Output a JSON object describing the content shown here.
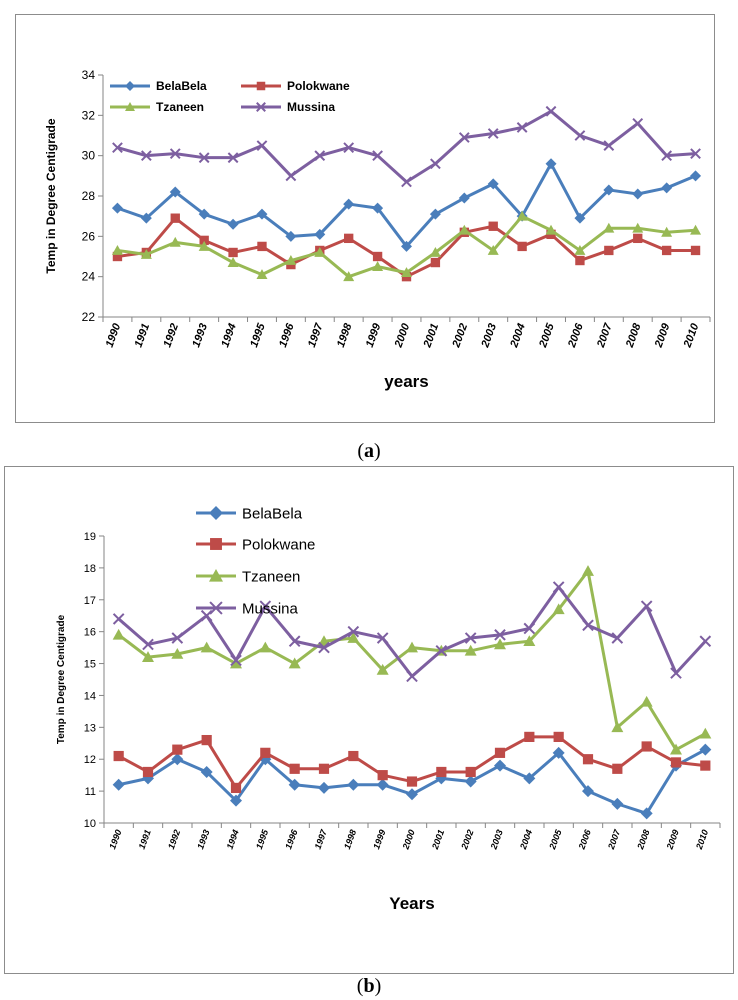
{
  "chart_data": [
    {
      "type": "line",
      "caption_letter": "a",
      "ylabel": "Temp in Degree Centigrade",
      "xlabel": "years",
      "ylim": [
        22,
        34
      ],
      "yticks": [
        22,
        24,
        26,
        28,
        30,
        32,
        34
      ],
      "legend_position": "top",
      "grid": false,
      "x": [
        "1990",
        "1991",
        "1992",
        "1993",
        "1994",
        "1995",
        "1996",
        "1997",
        "1998",
        "1999",
        "2000",
        "2001",
        "2002",
        "2003",
        "2004",
        "2005",
        "2006",
        "2007",
        "2008",
        "2009",
        "2010"
      ],
      "series": [
        {
          "name": "BelaBela",
          "color": "#4a7ebb",
          "marker": "diamond",
          "values": [
            27.4,
            26.9,
            28.2,
            27.1,
            26.6,
            27.1,
            26.0,
            26.1,
            27.6,
            27.4,
            25.5,
            27.1,
            27.9,
            28.6,
            27.0,
            29.6,
            26.9,
            28.3,
            28.1,
            28.4,
            29.0
          ]
        },
        {
          "name": "Polokwane",
          "color": "#be4b48",
          "marker": "square",
          "values": [
            25.0,
            25.2,
            26.9,
            25.8,
            25.2,
            25.5,
            24.6,
            25.3,
            25.9,
            25.0,
            24.0,
            24.7,
            26.2,
            26.5,
            25.5,
            26.1,
            24.8,
            25.3,
            25.9,
            25.3,
            25.3
          ]
        },
        {
          "name": "Tzaneen",
          "color": "#98b954",
          "marker": "triangle",
          "values": [
            25.3,
            25.1,
            25.7,
            25.5,
            24.7,
            24.1,
            24.8,
            25.2,
            24.0,
            24.5,
            24.2,
            25.2,
            26.3,
            25.3,
            27.0,
            26.3,
            25.3,
            26.4,
            26.4,
            26.2,
            26.3
          ]
        },
        {
          "name": "Mussina",
          "color": "#7d5fa0",
          "marker": "x",
          "values": [
            30.4,
            30.0,
            30.1,
            29.9,
            29.9,
            30.5,
            29.0,
            30.0,
            30.4,
            30.0,
            28.7,
            29.6,
            30.9,
            31.1,
            31.4,
            32.2,
            31.0,
            30.5,
            31.6,
            30.0,
            30.1
          ]
        }
      ]
    },
    {
      "type": "line",
      "caption_letter": "b",
      "ylabel": "Temp in Degree Centigrade",
      "xlabel": "Years",
      "ylim": [
        10,
        19
      ],
      "yticks": [
        10,
        11,
        12,
        13,
        14,
        15,
        16,
        17,
        18,
        19
      ],
      "legend_position": "top",
      "grid": false,
      "x": [
        "1990",
        "1991",
        "1992",
        "1993",
        "1994",
        "1995",
        "1996",
        "1997",
        "1998",
        "1999",
        "2000",
        "2001",
        "2002",
        "2003",
        "2004",
        "2005",
        "2006",
        "2007",
        "2008",
        "2009",
        "2010"
      ],
      "series": [
        {
          "name": "BelaBela",
          "color": "#4a7ebb",
          "marker": "diamond",
          "values": [
            11.2,
            11.4,
            12.0,
            11.6,
            10.7,
            12.0,
            11.2,
            11.1,
            11.2,
            11.2,
            10.9,
            11.4,
            11.3,
            11.8,
            11.4,
            12.2,
            11.0,
            10.6,
            10.3,
            11.8,
            12.3
          ]
        },
        {
          "name": "Polokwane",
          "color": "#be4b48",
          "marker": "square",
          "values": [
            12.1,
            11.6,
            12.3,
            12.6,
            11.1,
            12.2,
            11.7,
            11.7,
            12.1,
            11.5,
            11.3,
            11.6,
            11.6,
            12.2,
            12.7,
            12.7,
            12.0,
            11.7,
            12.4,
            11.9,
            11.8
          ]
        },
        {
          "name": "Tzaneen",
          "color": "#98b954",
          "marker": "triangle",
          "values": [
            15.9,
            15.2,
            15.3,
            15.5,
            15.0,
            15.5,
            15.0,
            15.7,
            15.8,
            14.8,
            15.5,
            15.4,
            15.4,
            15.6,
            15.7,
            16.7,
            17.9,
            13.0,
            13.8,
            12.3,
            12.8
          ]
        },
        {
          "name": "Mussina",
          "color": "#7d5fa0",
          "marker": "x",
          "values": [
            16.4,
            15.6,
            15.8,
            16.5,
            15.1,
            16.8,
            15.7,
            15.5,
            16.0,
            15.8,
            14.6,
            15.4,
            15.8,
            15.9,
            16.1,
            17.4,
            16.2,
            15.8,
            16.8,
            14.7,
            15.7
          ]
        }
      ]
    }
  ]
}
